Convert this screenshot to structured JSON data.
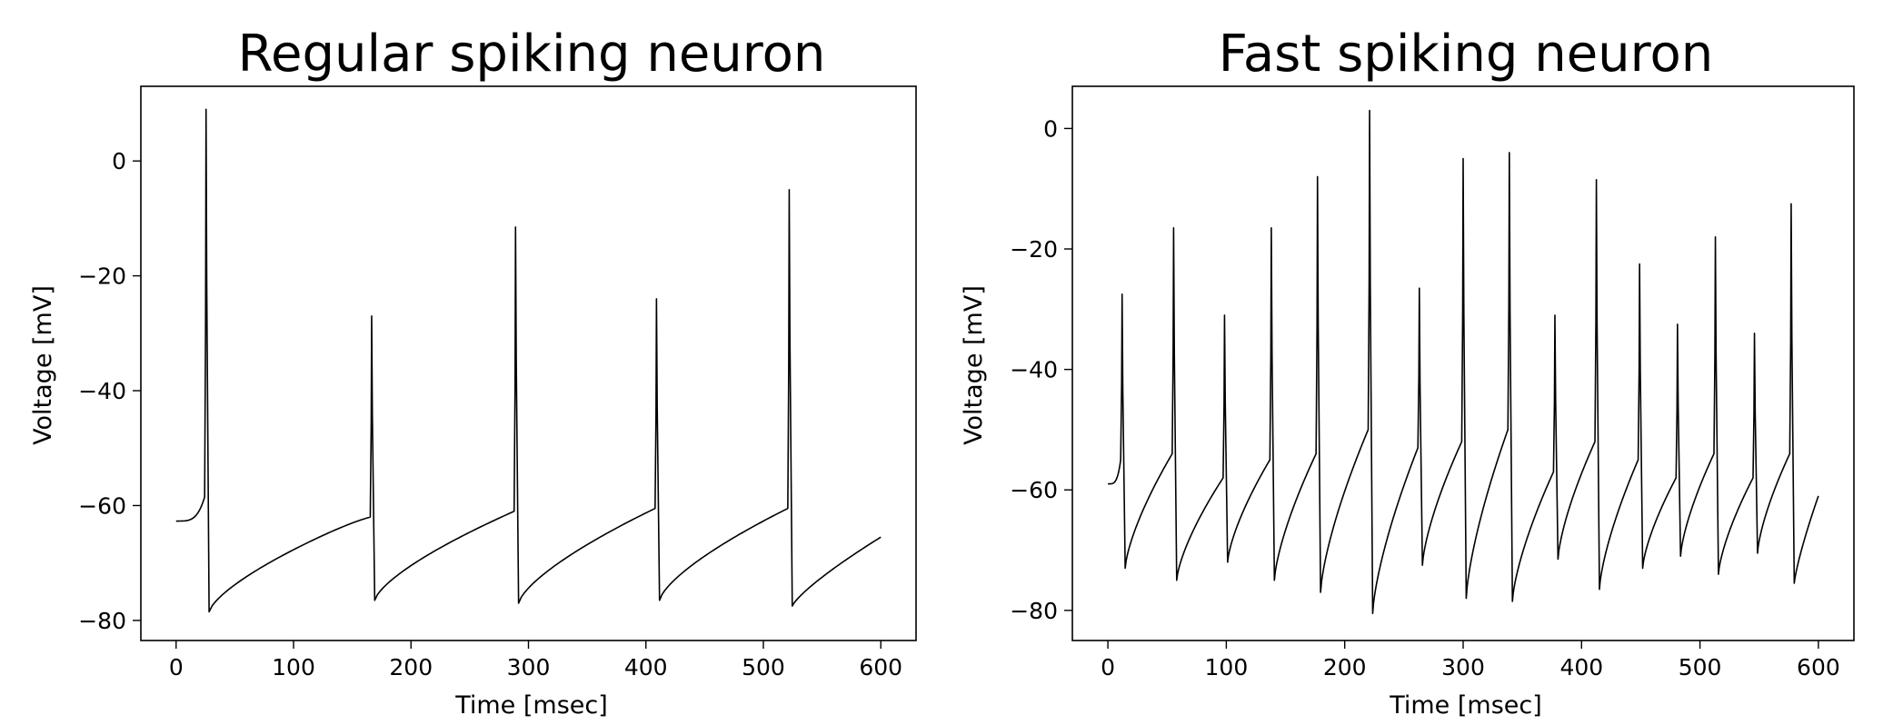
{
  "chart_data": [
    {
      "type": "line",
      "title": "Regular spiking neuron",
      "xlabel": "Time [msec]",
      "ylabel": "Voltage [mV]",
      "xlim": [
        -30,
        630
      ],
      "ylim": [
        -83.5,
        13
      ],
      "xticks": [
        0,
        100,
        200,
        300,
        400,
        500,
        600
      ],
      "yticks": [
        0,
        -20,
        -40,
        -60,
        -80
      ],
      "grid": false,
      "legend": "none",
      "line_color": "#000000",
      "start_v": -62.7,
      "end_t": 600,
      "end_v": -65.5,
      "spikes": [
        {
          "t": 25.5,
          "peak": 9,
          "pre": -58.5,
          "trough": -78.5,
          "rest_end": -61.5
        },
        {
          "t": 166.5,
          "peak": -27,
          "pre": -62,
          "trough": -76.5,
          "rest_end": -61
        },
        {
          "t": 289,
          "peak": -11.5,
          "pre": -61,
          "trough": -77,
          "rest_end": -60.5
        },
        {
          "t": 409,
          "peak": -24,
          "pre": -60.5,
          "trough": -76.5,
          "rest_end": -60.5
        },
        {
          "t": 522,
          "peak": -5,
          "pre": -60.5,
          "trough": -77.5,
          "rest_end": -65.5
        }
      ]
    },
    {
      "type": "line",
      "title": "Fast spiking neuron",
      "xlabel": "Time [msec]",
      "ylabel": "Voltage [mV]",
      "xlim": [
        -30,
        630
      ],
      "ylim": [
        -85,
        7
      ],
      "xticks": [
        0,
        100,
        200,
        300,
        400,
        500,
        600
      ],
      "yticks": [
        0,
        -20,
        -40,
        -60,
        -80
      ],
      "grid": false,
      "legend": "none",
      "line_color": "#000000",
      "start_v": -59,
      "end_t": 600,
      "end_v": -61,
      "spikes": [
        {
          "t": 12,
          "peak": -27.5,
          "pre": -55,
          "trough": -73
        },
        {
          "t": 55.5,
          "peak": -16.5,
          "pre": -54,
          "trough": -75
        },
        {
          "t": 98.5,
          "peak": -31,
          "pre": -58,
          "trough": -72
        },
        {
          "t": 138,
          "peak": -16.5,
          "pre": -55,
          "trough": -75
        },
        {
          "t": 177,
          "peak": -8,
          "pre": -54,
          "trough": -77
        },
        {
          "t": 221,
          "peak": 3,
          "pre": -50,
          "trough": -80.5
        },
        {
          "t": 263,
          "peak": -26.5,
          "pre": -53,
          "trough": -72.5
        },
        {
          "t": 300,
          "peak": -5,
          "pre": -52,
          "trough": -78
        },
        {
          "t": 339,
          "peak": -4,
          "pre": -50,
          "trough": -78.5
        },
        {
          "t": 377.5,
          "peak": -31,
          "pre": -57,
          "trough": -71.5
        },
        {
          "t": 412.5,
          "peak": -8.5,
          "pre": -52,
          "trough": -76.5
        },
        {
          "t": 449,
          "peak": -22.5,
          "pre": -55,
          "trough": -73
        },
        {
          "t": 481,
          "peak": -32.5,
          "pre": -58,
          "trough": -71
        },
        {
          "t": 513,
          "peak": -18,
          "pre": -54,
          "trough": -74
        },
        {
          "t": 546,
          "peak": -34,
          "pre": -58,
          "trough": -70.5
        },
        {
          "t": 577,
          "peak": -12.5,
          "pre": -54,
          "trough": -75.5
        }
      ]
    }
  ]
}
